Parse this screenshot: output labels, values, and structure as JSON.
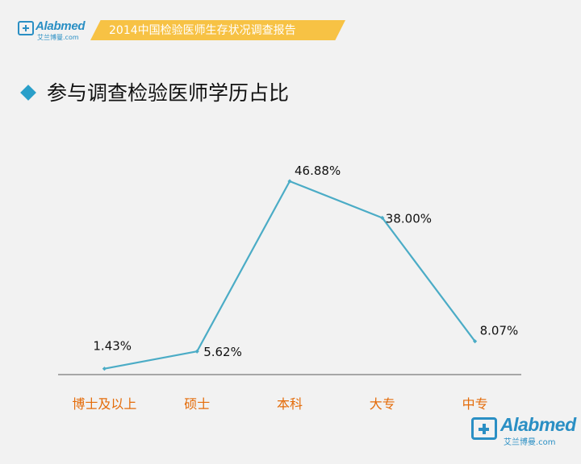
{
  "header": {
    "logo_text": "Alabmed",
    "logo_sub": "艾兰博曼.com",
    "banner": "2014中国检验医师生存状况调查报告"
  },
  "slide": {
    "title": "参与调查检验医师学历占比"
  },
  "footer": {
    "logo_text": "Alabmed",
    "logo_sub": "艾兰博曼.com"
  },
  "colors": {
    "line": "#4bacc6",
    "category_label": "#e46c0a",
    "axis": "#595959",
    "banner": "#f7c244",
    "brand": "#2a8fc4"
  },
  "chart_data": {
    "type": "line",
    "categories": [
      "博士及以上",
      "硕士",
      "本科",
      "大专",
      "中专"
    ],
    "values": [
      1.43,
      5.62,
      46.88,
      38.0,
      8.07
    ],
    "data_labels": [
      "1.43%",
      "5.62%",
      "46.88%",
      "38.00%",
      "8.07%"
    ],
    "ylim": [
      0,
      50
    ],
    "grid": false,
    "legend": "none"
  }
}
